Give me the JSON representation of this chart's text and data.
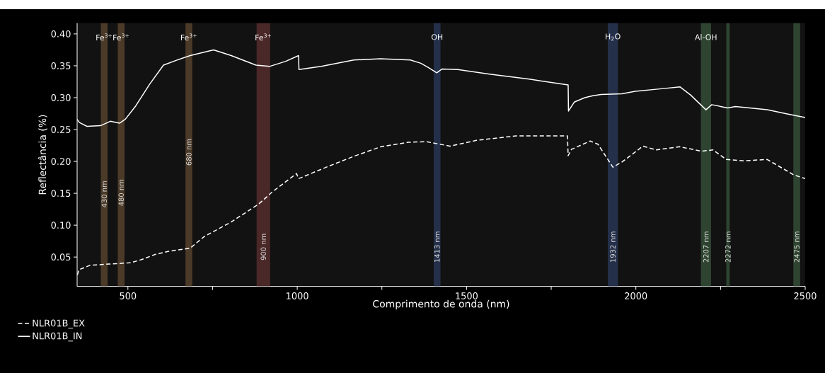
{
  "chart_data": {
    "type": "line",
    "xlabel": "Comprimento de onda (nm)",
    "ylabel": "Reflectância (%)",
    "xlim": [
      350,
      2500
    ],
    "ylim": [
      0.004,
      0.417
    ],
    "xticks": [
      500,
      {
        "value": 750,
        "label": null
      },
      1000,
      {
        "value": 1250,
        "label": null
      },
      1500,
      {
        "value": 1750,
        "label": null
      },
      2000,
      {
        "value": 2250,
        "label": null
      },
      2500
    ],
    "yticks": [
      0.05,
      {
        "value": 0.1,
        "label": "0.10"
      },
      0.15,
      {
        "value": 0.2,
        "label": "0.20"
      },
      0.25,
      {
        "value": 0.3,
        "label": "0.30"
      },
      0.35,
      {
        "value": 0.4,
        "label": "0.40"
      }
    ],
    "legend": "bottom left",
    "series": [
      {
        "name": "NLR01B_EX",
        "color": "#ffffff",
        "line_style": "dashed",
        "x": [
          351,
          355,
          388,
          444,
          508,
          540,
          580,
          621,
          684,
          725,
          805,
          886,
          926,
          998,
          1004,
          1086,
          1167,
          1247,
          1328,
          1381,
          1451,
          1529,
          1646,
          1798,
          1800,
          1810,
          1865,
          1888,
          1932,
          1959,
          2021,
          2060,
          2130,
          2193,
          2228,
          2267,
          2318,
          2388,
          2466,
          2500
        ],
        "values": [
          0.022,
          0.03,
          0.037,
          0.039,
          0.041,
          0.046,
          0.054,
          0.059,
          0.064,
          0.082,
          0.105,
          0.133,
          0.152,
          0.181,
          0.173,
          0.191,
          0.208,
          0.223,
          0.23,
          0.231,
          0.224,
          0.233,
          0.24,
          0.24,
          0.209,
          0.219,
          0.232,
          0.227,
          0.191,
          0.199,
          0.224,
          0.218,
          0.223,
          0.216,
          0.218,
          0.203,
          0.201,
          0.203,
          0.179,
          0.173
        ]
      },
      {
        "name": "NLR01B_IN",
        "color": "#ffffff",
        "line_style": "solid",
        "x": [
          350,
          357,
          379,
          419,
          448,
          475,
          492,
          523,
          564,
          605,
          645,
          684,
          753,
          805,
          878,
          918,
          966,
          1004,
          1005,
          1071,
          1167,
          1246,
          1334,
          1365,
          1388,
          1412,
          1428,
          1474,
          1568,
          1685,
          1800,
          1801,
          1818,
          1849,
          1873,
          1897,
          1959,
          1998,
          2076,
          2130,
          2162,
          2207,
          2224,
          2271,
          2294,
          2388,
          2442,
          2500
        ],
        "values": [
          0.266,
          0.261,
          0.255,
          0.256,
          0.263,
          0.26,
          0.266,
          0.287,
          0.321,
          0.351,
          0.359,
          0.366,
          0.375,
          0.366,
          0.351,
          0.349,
          0.357,
          0.366,
          0.344,
          0.349,
          0.359,
          0.361,
          0.359,
          0.354,
          0.347,
          0.339,
          0.345,
          0.344,
          0.337,
          0.329,
          0.32,
          0.279,
          0.293,
          0.3,
          0.303,
          0.305,
          0.306,
          0.31,
          0.314,
          0.317,
          0.304,
          0.281,
          0.289,
          0.284,
          0.286,
          0.281,
          0.275,
          0.269
        ]
      }
    ],
    "bands": [
      {
        "axis": "x",
        "from": 420,
        "to": 440,
        "label": "430 nm",
        "color": "#4b3a28"
      },
      {
        "axis": "x",
        "from": 470,
        "to": 490,
        "label": "480 nm",
        "color": "#4b3a28"
      },
      {
        "axis": "x",
        "from": 670,
        "to": 690,
        "label": "680 nm",
        "color": "#4b3a28"
      },
      {
        "axis": "x",
        "from": 880,
        "to": 920,
        "label": "900 nm",
        "color": "#4a2828"
      },
      {
        "axis": "x",
        "from": 1403,
        "to": 1423,
        "label": "1413 nm",
        "color": "#24304a"
      },
      {
        "axis": "x",
        "from": 1917,
        "to": 1947,
        "label": "1932 nm",
        "color": "#24304a"
      },
      {
        "axis": "x",
        "from": 2192,
        "to": 2222,
        "label": "2207 nm",
        "color": "#2e4430"
      },
      {
        "axis": "x",
        "from": 2267,
        "to": 2277,
        "label": "2272 nm",
        "color": "#2e4430"
      },
      {
        "axis": "x",
        "from": 2465,
        "to": 2485,
        "label": "2475 nm",
        "color": "#2e4430"
      }
    ],
    "annotations": [
      "Fe$^{3+}$",
      "Fe$^{3+}$",
      "Fe$^{3+}$",
      "Fe$^{3+}$",
      "OH",
      "H$_{2}$O",
      "Al-OH"
    ]
  }
}
